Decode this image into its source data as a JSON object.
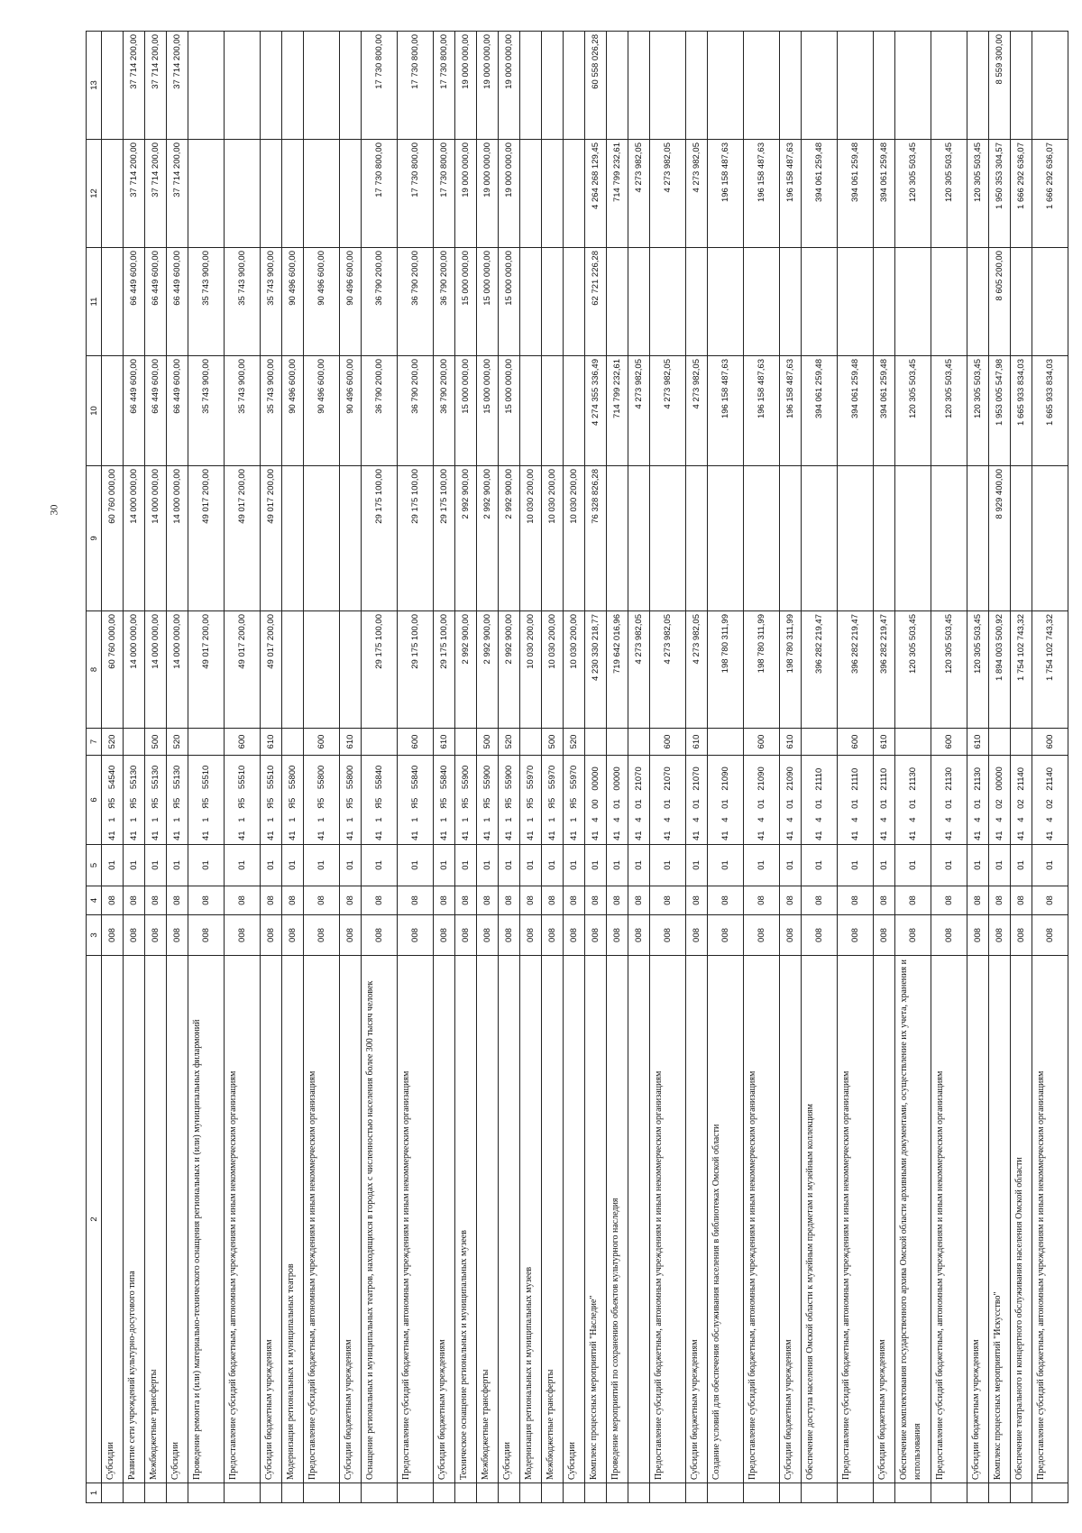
{
  "page_number": "30",
  "header": [
    "1",
    "2",
    "3",
    "4",
    "5",
    "6",
    "7",
    "8",
    "9",
    "10",
    "11",
    "12",
    "13"
  ],
  "rows": [
    [
      "",
      "Субсидии",
      "008",
      "08",
      "01",
      "41 1 Я5 54540",
      "520",
      "60 760 000,00",
      "60 760 000,00",
      "",
      "",
      "",
      ""
    ],
    [
      "",
      "Развитие сети учреждений культурно-досугового типа",
      "008",
      "08",
      "01",
      "41 1 Я5 55130",
      "",
      "14 000 000,00",
      "14 000 000,00",
      "66 449 600,00",
      "66 449 600,00",
      "37 714 200,00",
      "37 714 200,00"
    ],
    [
      "",
      "Межбюджетные трансферты",
      "008",
      "08",
      "01",
      "41 1 Я5 55130",
      "500",
      "14 000 000,00",
      "14 000 000,00",
      "66 449 600,00",
      "66 449 600,00",
      "37 714 200,00",
      "37 714 200,00"
    ],
    [
      "",
      "Субсидии",
      "008",
      "08",
      "01",
      "41 1 Я5 55130",
      "520",
      "14 000 000,00",
      "14 000 000,00",
      "66 449 600,00",
      "66 449 600,00",
      "37 714 200,00",
      "37 714 200,00"
    ],
    [
      "",
      "Проведение ремонта и (или) материально-технического оснащения региональных и (или) муниципальных филармоний",
      "008",
      "08",
      "01",
      "41 1 Я5 55510",
      "",
      "49 017 200,00",
      "49 017 200,00",
      "35 743 900,00",
      "35 743 900,00",
      "",
      ""
    ],
    [
      "",
      "Предоставление субсидий бюджетным, автономным учреждениям и иным некоммерческим организациям",
      "008",
      "08",
      "01",
      "41 1 Я5 55510",
      "600",
      "49 017 200,00",
      "49 017 200,00",
      "35 743 900,00",
      "35 743 900,00",
      "",
      ""
    ],
    [
      "",
      "Субсидии бюджетным учреждениям",
      "008",
      "08",
      "01",
      "41 1 Я5 55510",
      "610",
      "49 017 200,00",
      "49 017 200,00",
      "35 743 900,00",
      "35 743 900,00",
      "",
      ""
    ],
    [
      "",
      "Модернизация региональных и муниципальных театров",
      "008",
      "08",
      "01",
      "41 1 Я5 55800",
      "",
      "",
      "",
      "90 496 600,00",
      "90 496 600,00",
      "",
      ""
    ],
    [
      "",
      "Предоставление субсидий бюджетным, автономным учреждениям и иным некоммерческим организациям",
      "008",
      "08",
      "01",
      "41 1 Я5 55800",
      "600",
      "",
      "",
      "90 496 600,00",
      "90 496 600,00",
      "",
      ""
    ],
    [
      "",
      "Субсидии бюджетным учреждениям",
      "008",
      "08",
      "01",
      "41 1 Я5 55800",
      "610",
      "",
      "",
      "90 496 600,00",
      "90 496 600,00",
      "",
      ""
    ],
    [
      "",
      "Оснащение региональных и муниципальных театров, находящихся в городах с численностью населения более 300 тысяч человек",
      "008",
      "08",
      "01",
      "41 1 Я5 55840",
      "",
      "29 175 100,00",
      "29 175 100,00",
      "36 790 200,00",
      "36 790 200,00",
      "17 730 800,00",
      "17 730 800,00"
    ],
    [
      "",
      "Предоставление субсидий бюджетным, автономным учреждениям и иным некоммерческим организациям",
      "008",
      "08",
      "01",
      "41 1 Я5 55840",
      "600",
      "29 175 100,00",
      "29 175 100,00",
      "36 790 200,00",
      "36 790 200,00",
      "17 730 800,00",
      "17 730 800,00"
    ],
    [
      "",
      "Субсидии бюджетным учреждениям",
      "008",
      "08",
      "01",
      "41 1 Я5 55840",
      "610",
      "29 175 100,00",
      "29 175 100,00",
      "36 790 200,00",
      "36 790 200,00",
      "17 730 800,00",
      "17 730 800,00"
    ],
    [
      "",
      "Техническое оснащение региональных и муниципальных музеев",
      "008",
      "08",
      "01",
      "41 1 Я5 55900",
      "",
      "2 992 900,00",
      "2 992 900,00",
      "15 000 000,00",
      "15 000 000,00",
      "19 000 000,00",
      "19 000 000,00"
    ],
    [
      "",
      "Межбюджетные трансферты",
      "008",
      "08",
      "01",
      "41 1 Я5 55900",
      "500",
      "2 992 900,00",
      "2 992 900,00",
      "15 000 000,00",
      "15 000 000,00",
      "19 000 000,00",
      "19 000 000,00"
    ],
    [
      "",
      "Субсидии",
      "008",
      "08",
      "01",
      "41 1 Я5 55900",
      "520",
      "2 992 900,00",
      "2 992 900,00",
      "15 000 000,00",
      "15 000 000,00",
      "19 000 000,00",
      "19 000 000,00"
    ],
    [
      "",
      "Модернизация региональных и муниципальных музеев",
      "008",
      "08",
      "01",
      "41 1 Я5 55970",
      "",
      "10 030 200,00",
      "10 030 200,00",
      "",
      "",
      "",
      ""
    ],
    [
      "",
      "Межбюджетные трансферты",
      "008",
      "08",
      "01",
      "41 1 Я5 55970",
      "500",
      "10 030 200,00",
      "10 030 200,00",
      "",
      "",
      "",
      ""
    ],
    [
      "",
      "Субсидии",
      "008",
      "08",
      "01",
      "41 1 Я5 55970",
      "520",
      "10 030 200,00",
      "10 030 200,00",
      "",
      "",
      "",
      ""
    ],
    [
      "",
      "Комплекс процессных мероприятий \"Наследие\"",
      "008",
      "08",
      "01",
      "41 4 00 00000",
      "",
      "4 230 330 218,77",
      "76 328 826,28",
      "4 274 355 336,49",
      "62 721 226,28",
      "4 264 268 129,45",
      "60 558 026,28"
    ],
    [
      "",
      "Проведение мероприятий по сохранению объектов культурного наследия",
      "008",
      "08",
      "01",
      "41 4 01 00000",
      "",
      "719 642 016,96",
      "",
      "714 799 232,61",
      "",
      "714 799 232,61",
      ""
    ],
    [
      "",
      "",
      "008",
      "08",
      "01",
      "41 4 01 21070",
      "",
      "4 273 982,05",
      "",
      "4 273 982,05",
      "",
      "4 273 982,05",
      ""
    ],
    [
      "",
      "Предоставление субсидий бюджетным, автономным учреждениям и иным некоммерческим организациям",
      "008",
      "08",
      "01",
      "41 4 01 21070",
      "600",
      "4 273 982,05",
      "",
      "4 273 982,05",
      "",
      "4 273 982,05",
      ""
    ],
    [
      "",
      "Субсидии бюджетным учреждениям",
      "008",
      "08",
      "01",
      "41 4 01 21070",
      "610",
      "4 273 982,05",
      "",
      "4 273 982,05",
      "",
      "4 273 982,05",
      ""
    ],
    [
      "",
      "Создание условий для обеспечения обслуживания населения в библиотеках Омской области",
      "008",
      "08",
      "01",
      "41 4 01 21090",
      "",
      "198 780 311,99",
      "",
      "196 158 487,63",
      "",
      "196 158 487,63",
      ""
    ],
    [
      "",
      "Предоставление субсидий бюджетным, автономным учреждениям и иным некоммерческим организациям",
      "008",
      "08",
      "01",
      "41 4 01 21090",
      "600",
      "198 780 311,99",
      "",
      "196 158 487,63",
      "",
      "196 158 487,63",
      ""
    ],
    [
      "",
      "Субсидии бюджетным учреждениям",
      "008",
      "08",
      "01",
      "41 4 01 21090",
      "610",
      "198 780 311,99",
      "",
      "196 158 487,63",
      "",
      "196 158 487,63",
      ""
    ],
    [
      "",
      "Обеспечение доступа населения Омской области к музейным предметам и музейным коллекциям",
      "008",
      "08",
      "01",
      "41 4 01 21110",
      "",
      "396 282 219,47",
      "",
      "394 061 259,48",
      "",
      "394 061 259,48",
      ""
    ],
    [
      "",
      "Предоставление субсидий бюджетным, автономным учреждениям и иным некоммерческим организациям",
      "008",
      "08",
      "01",
      "41 4 01 21110",
      "600",
      "396 282 219,47",
      "",
      "394 061 259,48",
      "",
      "394 061 259,48",
      ""
    ],
    [
      "",
      "Субсидии бюджетным учреждениям",
      "008",
      "08",
      "01",
      "41 4 01 21110",
      "610",
      "396 282 219,47",
      "",
      "394 061 259,48",
      "",
      "394 061 259,48",
      ""
    ],
    [
      "",
      "Обеспечение комплектования государственного архива Омской области архивными документами, осуществление их учета, хранения и использования",
      "008",
      "08",
      "01",
      "41 4 01 21130",
      "",
      "120 305 503,45",
      "",
      "120 305 503,45",
      "",
      "120 305 503,45",
      ""
    ],
    [
      "",
      "Предоставление субсидий бюджетным, автономным учреждениям и иным некоммерческим организациям",
      "008",
      "08",
      "01",
      "41 4 01 21130",
      "600",
      "120 305 503,45",
      "",
      "120 305 503,45",
      "",
      "120 305 503,45",
      ""
    ],
    [
      "",
      "Субсидии бюджетным учреждениям",
      "008",
      "08",
      "01",
      "41 4 01 21130",
      "610",
      "120 305 503,45",
      "",
      "120 305 503,45",
      "",
      "120 305 503,45",
      ""
    ],
    [
      "",
      "Комплекс процессных мероприятий \"Искусство\"",
      "008",
      "08",
      "01",
      "41 4 02 00000",
      "",
      "1 894 003 500,92",
      "8 929 400,00",
      "1 953 005 547,98",
      "8 605 200,00",
      "1 950 353 304,57",
      "8 559 300,00"
    ],
    [
      "",
      "Обеспечение театрального и концертного обслуживания населения Омской области",
      "008",
      "08",
      "01",
      "41 4 02 21140",
      "",
      "1 754 102 743,32",
      "",
      "1 665 933 834,03",
      "",
      "1 666 292 636,07",
      ""
    ],
    [
      "",
      "Предоставление субсидий бюджетным, автономным учреждениям и иным некоммерческим организациям",
      "008",
      "08",
      "01",
      "41 4 02 21140",
      "600",
      "1 754 102 743,32",
      "",
      "1 665 933 834,03",
      "",
      "1 666 292 636,07",
      ""
    ]
  ]
}
